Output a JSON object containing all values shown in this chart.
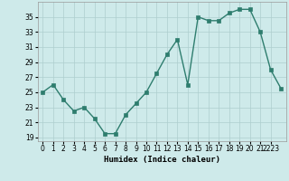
{
  "x": [
    0,
    1,
    2,
    3,
    4,
    5,
    6,
    7,
    8,
    9,
    10,
    11,
    12,
    13,
    14,
    15,
    16,
    17,
    18,
    19,
    20,
    21,
    22,
    23
  ],
  "y": [
    25,
    26,
    24,
    22.5,
    23,
    21.5,
    19.5,
    19.5,
    22,
    23.5,
    25,
    27.5,
    30,
    32,
    26,
    35,
    34.5,
    34.5,
    35.5,
    36,
    36,
    33,
    28,
    25.5
  ],
  "line_color": "#2e7d6e",
  "marker_color": "#2e7d6e",
  "bg_color": "#ceeaea",
  "grid_color": "#aecece",
  "xlabel": "Humidex (Indice chaleur)",
  "ylim": [
    18.5,
    37
  ],
  "xlim": [
    -0.5,
    23.5
  ],
  "yticks": [
    19,
    21,
    23,
    25,
    27,
    29,
    31,
    33,
    35
  ],
  "xtick_labels": [
    "0",
    "1",
    "2",
    "3",
    "4",
    "5",
    "6",
    "7",
    "8",
    "9",
    "10",
    "11",
    "12",
    "13",
    "14",
    "15",
    "16",
    "17",
    "18",
    "19",
    "20",
    "21",
    "2223"
  ],
  "xticks": [
    0,
    1,
    2,
    3,
    4,
    5,
    6,
    7,
    8,
    9,
    10,
    11,
    12,
    13,
    14,
    15,
    16,
    17,
    18,
    19,
    20,
    21,
    22
  ],
  "xlabel_fontsize": 6.5,
  "tick_fontsize": 5.5,
  "line_width": 1.0,
  "marker_size": 2.5
}
